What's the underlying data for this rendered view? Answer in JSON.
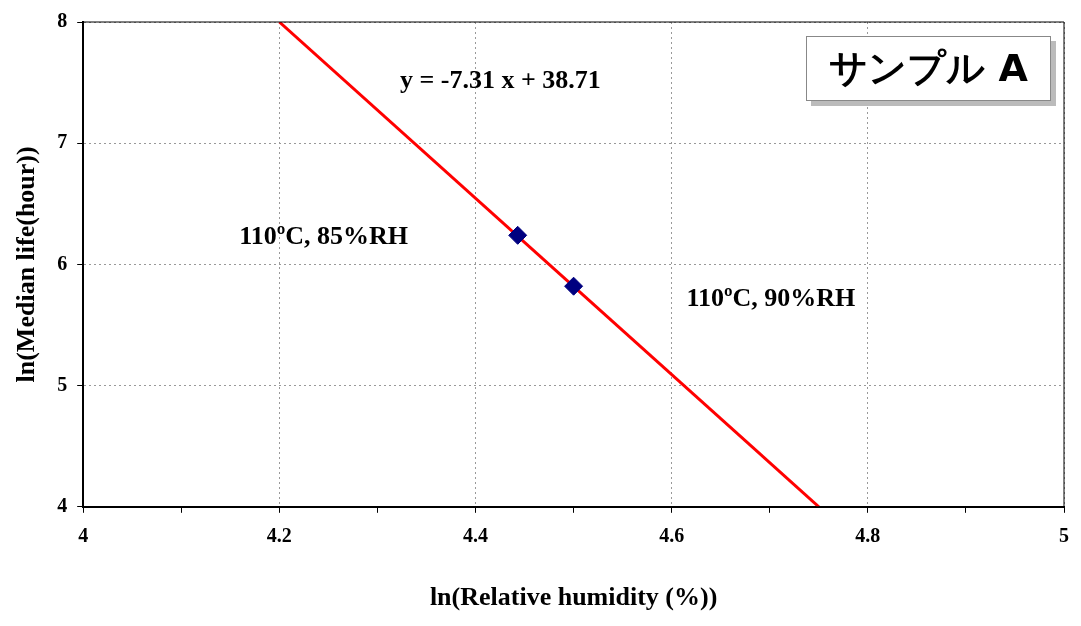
{
  "chart_data": {
    "type": "scatter",
    "title": "サンプル A",
    "xlabel": "ln(Relative humidity (%))",
    "ylabel": "ln(Median life(hour))",
    "x": [
      4.443,
      4.5
    ],
    "xlim": [
      4,
      5
    ],
    "ylim": [
      4,
      8
    ],
    "xticks": [
      4,
      {
        "value": 4.1,
        "label": null
      },
      4.2,
      {
        "value": 4.3,
        "label": null
      },
      4.4,
      {
        "value": 4.5,
        "label": null
      },
      4.6,
      {
        "value": 4.7,
        "label": null
      },
      4.8,
      {
        "value": 4.9,
        "label": null
      },
      5
    ],
    "yticks": [
      4,
      5,
      6,
      7,
      8
    ],
    "grid": true,
    "legend": false,
    "marker": "diamond",
    "series": [
      {
        "color": "#000080",
        "values": [
          6.24,
          5.82
        ]
      },
      {
        "type": "line",
        "color": "#ff0000",
        "x": [
          4.2,
          4.75
        ],
        "values": [
          8.0,
          4.0
        ],
        "marker": "none",
        "line_style": "solid"
      }
    ],
    "annotations": [
      "y = -7.31 x + 38.71",
      "110ºC, 85%RH",
      "110ºC, 90%RH"
    ]
  }
}
